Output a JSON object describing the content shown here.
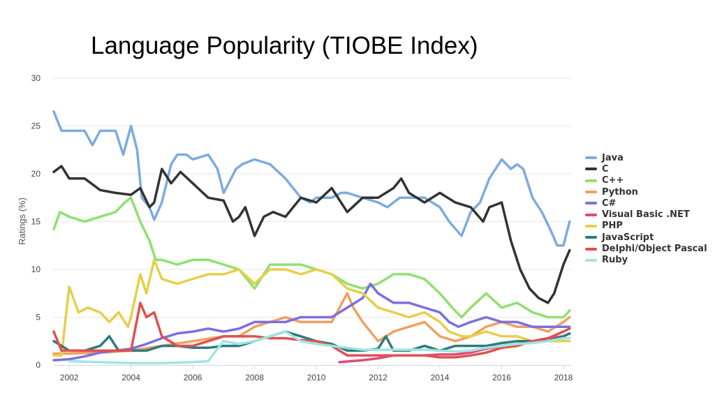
{
  "title": "Language Popularity (TIOBE Index)",
  "chart_data": {
    "type": "line",
    "title": "Language Popularity (TIOBE Index)",
    "xlabel": "",
    "ylabel": "Ratings (%)",
    "xlim": [
      2001.5,
      2018.25
    ],
    "ylim": [
      0,
      30
    ],
    "xticks": [
      "2002",
      "2004",
      "2006",
      "2008",
      "2010",
      "2012",
      "2014",
      "2016",
      "2018"
    ],
    "yticks": [
      "0",
      "5",
      "10",
      "15",
      "20",
      "25",
      "30"
    ],
    "grid": true,
    "legend": "right",
    "series": [
      {
        "name": "Java",
        "color": "#7cabdf",
        "x": [
          2001.5,
          2001.75,
          2002,
          2002.5,
          2002.75,
          2003,
          2003.5,
          2003.75,
          2004,
          2004.2,
          2004.35,
          2004.6,
          2004.75,
          2005,
          2005.3,
          2005.5,
          2005.8,
          2006,
          2006.5,
          2006.8,
          2007,
          2007.4,
          2007.6,
          2008,
          2008.5,
          2009,
          2009.5,
          2009.8,
          2010,
          2010.5,
          2010.8,
          2011,
          2011.5,
          2012,
          2012.3,
          2012.7,
          2013,
          2013.5,
          2014,
          2014.3,
          2014.7,
          2015,
          2015.3,
          2015.6,
          2016,
          2016.3,
          2016.5,
          2016.7,
          2017,
          2017.3,
          2017.6,
          2017.8,
          2018,
          2018.2
        ],
        "values": [
          26.5,
          24.5,
          24.5,
          24.5,
          23,
          24.5,
          24.5,
          22,
          25,
          22.5,
          17.5,
          16.5,
          15.2,
          17,
          21,
          22,
          22,
          21.5,
          22,
          20.5,
          18,
          20.5,
          21,
          21.5,
          21,
          19.5,
          17.5,
          17,
          17.5,
          17.5,
          18,
          18,
          17.5,
          17,
          16.5,
          17.5,
          17.5,
          17.5,
          16.5,
          15,
          13.5,
          16,
          17,
          19.5,
          21.5,
          20.5,
          21,
          20.5,
          17.5,
          16,
          14,
          12.5,
          12.5,
          15
        ]
      },
      {
        "name": "C",
        "color": "#333333",
        "x": [
          2001.5,
          2001.75,
          2002,
          2002.5,
          2003,
          2003.5,
          2004,
          2004.3,
          2004.6,
          2004.75,
          2005,
          2005.3,
          2005.6,
          2006,
          2006.5,
          2007,
          2007.3,
          2007.5,
          2007.7,
          2008,
          2008.3,
          2008.6,
          2009,
          2009.5,
          2010,
          2010.5,
          2011,
          2011.5,
          2012,
          2012.5,
          2012.75,
          2013,
          2013.5,
          2014,
          2014.5,
          2015,
          2015.4,
          2015.6,
          2016,
          2016.3,
          2016.6,
          2016.9,
          2017.2,
          2017.5,
          2017.7,
          2018,
          2018.2
        ],
        "values": [
          20.2,
          20.8,
          19.5,
          19.5,
          18.3,
          18,
          17.8,
          18.5,
          16.5,
          17,
          20.5,
          19,
          20.2,
          19,
          17.5,
          17.2,
          15,
          15.5,
          16.5,
          13.5,
          15.5,
          16,
          15.5,
          17.5,
          17,
          18.5,
          16,
          17.5,
          17.5,
          18.5,
          19.5,
          18,
          17,
          18,
          17,
          16.5,
          15,
          16.5,
          17,
          13,
          10,
          8,
          7,
          6.5,
          7.5,
          10.5,
          12
        ]
      },
      {
        "name": "C++",
        "color": "#90e070",
        "x": [
          2001.5,
          2001.7,
          2002,
          2002.5,
          2003,
          2003.5,
          2003.8,
          2004,
          2004.3,
          2004.6,
          2004.8,
          2005,
          2005.5,
          2006,
          2006.5,
          2007,
          2007.5,
          2008,
          2008.5,
          2009,
          2009.5,
          2010,
          2010.5,
          2011,
          2011.5,
          2012,
          2012.5,
          2013,
          2013.5,
          2014,
          2014.4,
          2014.7,
          2015,
          2015.5,
          2016,
          2016.5,
          2017,
          2017.5,
          2018,
          2018.2
        ],
        "values": [
          14.2,
          16,
          15.5,
          15,
          15.5,
          16,
          17,
          17.5,
          15,
          13,
          11,
          11,
          10.5,
          11,
          11,
          10.5,
          10,
          8,
          10.5,
          10.5,
          10.5,
          10,
          9.5,
          8.5,
          8,
          8.5,
          9.5,
          9.5,
          9,
          7.5,
          6,
          5,
          6,
          7.5,
          6,
          6.5,
          5.5,
          5,
          5,
          5.7
        ]
      },
      {
        "name": "Python",
        "color": "#f0a060",
        "x": [
          2001.5,
          2002,
          2003,
          2004,
          2005,
          2006,
          2007,
          2007.5,
          2008,
          2008.5,
          2009,
          2009.5,
          2010,
          2010.5,
          2011,
          2011.2,
          2011.5,
          2012,
          2012.5,
          2013,
          2013.5,
          2014,
          2014.5,
          2015,
          2015.5,
          2016,
          2016.5,
          2017,
          2017.5,
          2018,
          2018.2
        ],
        "values": [
          1.2,
          1.2,
          1.3,
          1.5,
          2,
          2.5,
          3,
          3,
          4,
          4.5,
          5,
          4.5,
          4.5,
          4.5,
          7.5,
          6,
          4.5,
          2.5,
          3.5,
          4,
          4.5,
          3,
          2.5,
          3,
          4,
          4.5,
          4,
          4,
          3.5,
          4.5,
          5
        ]
      },
      {
        "name": "C#",
        "color": "#7b6fe0",
        "x": [
          2001.5,
          2002,
          2002.5,
          2003,
          2003.5,
          2004,
          2004.5,
          2005,
          2005.5,
          2006,
          2006.5,
          2007,
          2007.5,
          2008,
          2008.5,
          2009,
          2009.5,
          2010,
          2010.5,
          2011,
          2011.5,
          2011.75,
          2012,
          2012.5,
          2013,
          2013.5,
          2014,
          2014.3,
          2014.6,
          2015,
          2015.5,
          2016,
          2016.5,
          2017,
          2017.5,
          2018,
          2018.2
        ],
        "values": [
          0.5,
          0.6,
          0.9,
          1.3,
          1.5,
          1.7,
          2.2,
          2.8,
          3.3,
          3.5,
          3.8,
          3.5,
          3.8,
          4.5,
          4.5,
          4.5,
          5,
          5,
          5,
          6,
          7,
          8.5,
          7.5,
          6.5,
          6.5,
          6,
          5.5,
          4.5,
          4,
          4.5,
          5,
          4.5,
          4.5,
          4,
          4,
          4,
          4
        ]
      },
      {
        "name": "Visual Basic .NET",
        "color": "#e04a7a",
        "x": [
          2010.75,
          2011.5,
          2012,
          2012.5,
          2013,
          2013.5,
          2014,
          2014.5,
          2015,
          2015.5,
          2016,
          2016.5,
          2017,
          2017.5,
          2018,
          2018.2
        ],
        "values": [
          0.3,
          0.5,
          0.7,
          1,
          1,
          1,
          1.1,
          1.1,
          1.3,
          1.7,
          2,
          2.2,
          2.5,
          2.8,
          3,
          3.3
        ]
      },
      {
        "name": "PHP",
        "color": "#e6cf4a",
        "x": [
          2001.5,
          2001.75,
          2002,
          2002.3,
          2002.6,
          2003,
          2003.3,
          2003.6,
          2003.9,
          2004,
          2004.3,
          2004.5,
          2004.75,
          2005,
          2005.5,
          2006,
          2006.5,
          2007,
          2007.5,
          2008,
          2008.5,
          2009,
          2009.5,
          2010,
          2010.5,
          2011,
          2011.5,
          2012,
          2012.5,
          2013,
          2013.5,
          2014,
          2014.3,
          2014.7,
          2015,
          2015.5,
          2016,
          2016.5,
          2017,
          2017.5,
          2018,
          2018.2
        ],
        "values": [
          1,
          1,
          8.2,
          5.5,
          6,
          5.5,
          4.5,
          5.5,
          4,
          5,
          9.5,
          7.5,
          11,
          9,
          8.5,
          9,
          9.5,
          9.5,
          10,
          8.5,
          10,
          10,
          9.5,
          10,
          9.5,
          8,
          7.5,
          6,
          5.5,
          5,
          5.5,
          4.5,
          3.5,
          3,
          3,
          3.5,
          3,
          3,
          2.5,
          2.5,
          2.5,
          2.5
        ]
      },
      {
        "name": "JavaScript",
        "color": "#2e7b7b",
        "x": [
          2001.5,
          2002,
          2002.5,
          2003,
          2003.3,
          2003.6,
          2004,
          2004.5,
          2005,
          2005.5,
          2006,
          2006.5,
          2007,
          2007.5,
          2008,
          2008.5,
          2009,
          2009.5,
          2010,
          2010.5,
          2011,
          2011.5,
          2012,
          2012.25,
          2012.5,
          2013,
          2013.5,
          2014,
          2014.5,
          2015,
          2015.5,
          2016,
          2016.5,
          2017,
          2017.5,
          2018,
          2018.2
        ],
        "values": [
          2.5,
          1.5,
          1.5,
          2,
          3,
          1.5,
          1.5,
          1.5,
          2,
          2,
          1.8,
          1.8,
          2,
          2,
          2.5,
          3,
          3.5,
          3,
          2.5,
          2.2,
          1.5,
          1.5,
          1.7,
          3,
          1.5,
          1.5,
          2,
          1.5,
          2,
          2,
          2,
          2.3,
          2.5,
          2.5,
          2.5,
          3,
          3.3
        ]
      },
      {
        "name": "Delphi/Object Pascal",
        "color": "#e05050",
        "x": [
          2001.5,
          2001.75,
          2002,
          2002.5,
          2003,
          2003.5,
          2004,
          2004.3,
          2004.5,
          2004.75,
          2005,
          2005.5,
          2006,
          2006.5,
          2007,
          2007.5,
          2008,
          2008.5,
          2009,
          2009.5,
          2010,
          2010.5,
          2011,
          2011.5,
          2012,
          2012.5,
          2013,
          2013.5,
          2014,
          2014.5,
          2015,
          2015.5,
          2016,
          2016.5,
          2017,
          2017.5,
          2018,
          2018.2
        ],
        "values": [
          3.5,
          1.5,
          1.5,
          1.5,
          1.5,
          1.5,
          1.5,
          6.5,
          5,
          5.5,
          3,
          2,
          2,
          2.5,
          3,
          3,
          3,
          2.8,
          2.8,
          2.6,
          2.5,
          2,
          1,
          1,
          1,
          1,
          1,
          1,
          0.8,
          0.8,
          1,
          1.3,
          1.8,
          2,
          2.5,
          2.8,
          3.5,
          3.8
        ]
      },
      {
        "name": "Ruby",
        "color": "#9fe5e0",
        "x": [
          2001.5,
          2002,
          2003,
          2004,
          2005,
          2006,
          2006.5,
          2006.75,
          2007,
          2007.5,
          2008,
          2008.5,
          2009,
          2009.5,
          2010,
          2010.5,
          2011,
          2011.5,
          2012,
          2012.5,
          2013,
          2013.5,
          2014,
          2014.5,
          2015,
          2015.5,
          2016,
          2016.5,
          2017,
          2017.5,
          2018,
          2018.2
        ],
        "values": [
          null,
          0.4,
          0.3,
          0.2,
          0.2,
          0.3,
          0.4,
          1.5,
          2.5,
          2.2,
          2.5,
          3,
          3.5,
          2.5,
          2.2,
          2,
          1.8,
          1.6,
          1.6,
          1.6,
          1.6,
          1.6,
          1.5,
          1.4,
          1.5,
          1.8,
          2,
          2.2,
          2.3,
          2.5,
          2.8,
          2.8
        ]
      }
    ]
  }
}
